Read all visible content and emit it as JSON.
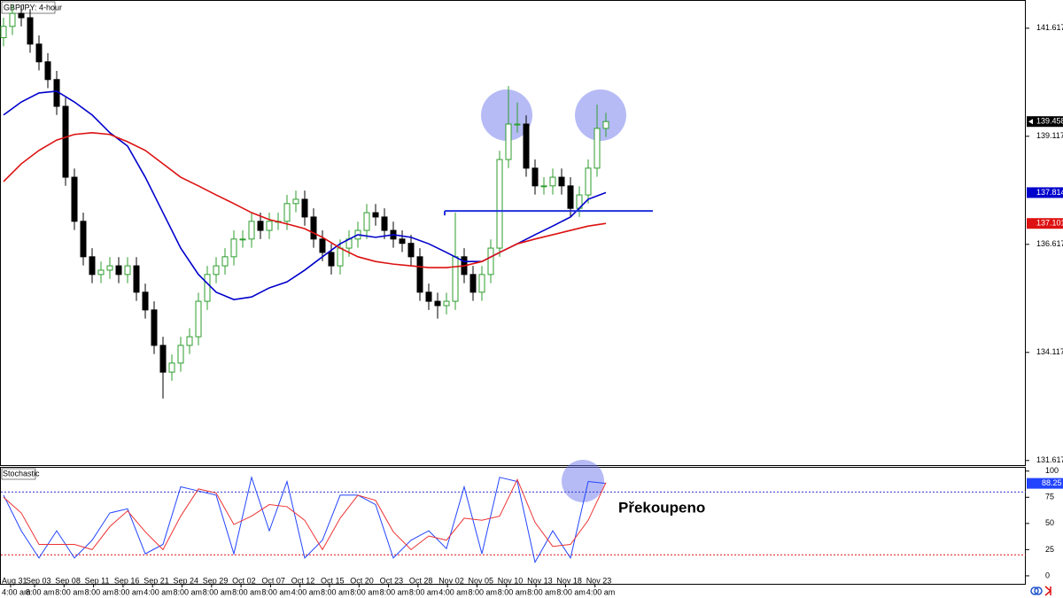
{
  "chart_data": {
    "type": "candlestick",
    "title": "GBPJPY: 4-hour",
    "ylim": [
      131.51,
      142.27
    ],
    "yticks": [
      141.617,
      139.117,
      136.617,
      134.117,
      131.617
    ],
    "up_color": "#2e9e2e",
    "down_color": "#000000",
    "open": [
      141.4,
      141.66,
      141.96,
      141.86,
      141.25,
      140.84,
      140.43,
      139.81,
      138.17,
      137.15,
      136.33,
      135.92,
      136.02,
      136.12,
      135.92,
      136.12,
      135.51,
      135.1,
      134.28,
      133.66,
      133.87,
      134.28,
      134.48,
      135.3,
      135.92,
      136.12,
      136.33,
      136.74,
      136.74,
      137.15,
      136.94,
      137.15,
      137.15,
      137.56,
      137.66,
      137.25,
      136.74,
      136.43,
      136.12,
      136.53,
      136.74,
      136.94,
      137.35,
      137.25,
      136.94,
      136.74,
      136.64,
      136.33,
      135.51,
      135.3,
      135.2,
      135.3,
      136.33,
      135.92,
      135.51,
      135.92,
      136.53,
      138.58,
      139.4,
      139.4,
      138.38,
      137.97,
      137.97,
      138.17,
      137.97,
      137.45,
      137.76,
      138.38,
      139.3
    ],
    "high": [
      141.86,
      142.16,
      142.16,
      142.06,
      141.45,
      141.04,
      140.63,
      140.01,
      138.37,
      137.35,
      136.53,
      136.22,
      136.32,
      136.32,
      136.32,
      136.32,
      135.71,
      135.3,
      134.48,
      134.07,
      134.48,
      134.68,
      135.5,
      136.12,
      136.32,
      136.53,
      136.94,
      136.94,
      137.35,
      137.35,
      137.35,
      137.35,
      137.76,
      137.86,
      137.86,
      137.45,
      136.94,
      136.63,
      136.73,
      136.94,
      137.14,
      137.55,
      137.55,
      137.45,
      137.14,
      136.94,
      136.84,
      136.53,
      135.71,
      135.5,
      135.5,
      137.35,
      136.53,
      136.12,
      136.12,
      136.73,
      138.78,
      140.28,
      139.9,
      139.6,
      138.58,
      138.17,
      138.37,
      138.37,
      138.17,
      137.96,
      138.58,
      139.85,
      139.66
    ],
    "low": [
      141.2,
      141.46,
      141.66,
      141.05,
      140.64,
      140.23,
      139.61,
      137.97,
      136.95,
      136.13,
      135.72,
      135.72,
      135.82,
      135.72,
      135.72,
      135.31,
      134.9,
      134.08,
      133.05,
      133.46,
      133.67,
      134.08,
      134.28,
      135.1,
      135.72,
      135.92,
      136.13,
      136.54,
      136.54,
      136.74,
      136.74,
      136.95,
      136.95,
      137.36,
      137.05,
      136.54,
      136.23,
      135.92,
      135.92,
      136.33,
      136.54,
      136.74,
      137.05,
      136.74,
      136.54,
      136.44,
      136.13,
      135.31,
      135.1,
      134.9,
      135.0,
      135.1,
      135.72,
      135.31,
      135.31,
      135.72,
      136.33,
      138.38,
      139.2,
      138.18,
      137.77,
      137.77,
      137.77,
      137.77,
      137.25,
      137.25,
      137.56,
      138.18,
      139.1
    ],
    "close": [
      141.66,
      141.96,
      141.86,
      141.25,
      140.84,
      140.43,
      139.81,
      138.17,
      137.15,
      136.33,
      135.92,
      136.02,
      136.12,
      135.92,
      136.12,
      135.51,
      135.1,
      134.28,
      133.66,
      133.87,
      134.28,
      134.48,
      135.3,
      135.92,
      136.12,
      136.33,
      136.74,
      136.74,
      137.15,
      136.94,
      137.15,
      137.15,
      137.56,
      137.66,
      137.25,
      136.74,
      136.43,
      136.12,
      136.53,
      136.74,
      136.94,
      137.35,
      137.25,
      136.94,
      136.74,
      136.64,
      136.33,
      135.51,
      135.3,
      135.2,
      135.3,
      136.33,
      135.92,
      135.51,
      135.92,
      136.53,
      138.58,
      139.4,
      139.4,
      138.38,
      137.97,
      137.97,
      138.17,
      137.97,
      137.45,
      137.76,
      138.38,
      139.3,
      139.458
    ],
    "current_label": "139.458",
    "moving_averages": [
      {
        "color": "#0000cc",
        "label": "137.814",
        "values": [
          139.61,
          139.91,
          140.12,
          140.16,
          139.91,
          139.61,
          139.2,
          138.89,
          138.17,
          137.35,
          136.53,
          135.92,
          135.51,
          135.34,
          135.4,
          135.61,
          135.75,
          136.02,
          136.33,
          136.63,
          136.84,
          136.78,
          136.84,
          136.78,
          136.63,
          136.43,
          136.22,
          136.22,
          136.43,
          136.63,
          136.84,
          137.04,
          137.25,
          137.66,
          137.814
        ]
      },
      {
        "color": "#dd1111",
        "label": "137.101",
        "values": [
          138.07,
          138.48,
          138.79,
          139.03,
          139.16,
          139.2,
          139.16,
          138.99,
          138.79,
          138.48,
          138.17,
          137.97,
          137.76,
          137.56,
          137.35,
          137.19,
          137.09,
          136.98,
          136.78,
          136.53,
          136.33,
          136.22,
          136.16,
          136.12,
          136.08,
          136.08,
          136.12,
          136.22,
          136.43,
          136.63,
          136.74,
          136.84,
          136.94,
          137.04,
          137.101
        ]
      }
    ],
    "support_level": 137.39,
    "support_color": "#2233dd",
    "indicator": {
      "title": "Stochastic",
      "annotation": "Překoupeno",
      "ylim": [
        -8.5,
        104
      ],
      "yticks": [
        100,
        75,
        50,
        25,
        0
      ],
      "levels": [
        {
          "value": 80,
          "color": "#3333cc"
        },
        {
          "value": 20,
          "color": "#dd1111"
        }
      ],
      "series": [
        {
          "name": "%K",
          "color": "#2244ff",
          "label": "88.25",
          "values": [
            77,
            43,
            17,
            43,
            17,
            34,
            60,
            64,
            21,
            30,
            85,
            81,
            77,
            21,
            94,
            43,
            90,
            17,
            34,
            77,
            77,
            68,
            17,
            34,
            43,
            26,
            85,
            21,
            94,
            90,
            13,
            43,
            17,
            90,
            88.25
          ]
        },
        {
          "name": "%D",
          "color": "#ee3333",
          "values": [
            75,
            60,
            30,
            30,
            30,
            25,
            47,
            62,
            42,
            25,
            57,
            83,
            79,
            49,
            57,
            68,
            66,
            53,
            25,
            55,
            77,
            72,
            42,
            25,
            38,
            34,
            55,
            53,
            57,
            92,
            51,
            28,
            30,
            53,
            89
          ]
        }
      ]
    },
    "x_labels": [
      {
        "date": "Aug 31",
        "time": "4:00 am"
      },
      {
        "date": "Sep 03",
        "time": "8:00 am"
      },
      {
        "date": "Sep 08",
        "time": "8:00 am"
      },
      {
        "date": "Sep 11",
        "time": "8:00 am"
      },
      {
        "date": "Sep 16",
        "time": "8:00 am"
      },
      {
        "date": "Sep 21",
        "time": "4:00 am"
      },
      {
        "date": "Sep 24",
        "time": "8:00 am"
      },
      {
        "date": "Sep 29",
        "time": "8:00 am"
      },
      {
        "date": "Oct 02",
        "time": "8:00 am"
      },
      {
        "date": "Oct 07",
        "time": "8:00 am"
      },
      {
        "date": "Oct 12",
        "time": "4:00 am"
      },
      {
        "date": "Oct 15",
        "time": "8:00 am"
      },
      {
        "date": "Oct 20",
        "time": "8:00 am"
      },
      {
        "date": "Oct 23",
        "time": "8:00 am"
      },
      {
        "date": "Oct 28",
        "time": "8:00 am"
      },
      {
        "date": "Nov 02",
        "time": "4:00 am"
      },
      {
        "date": "Nov 05",
        "time": "8:00 am"
      },
      {
        "date": "Nov 10",
        "time": "8:00 am"
      },
      {
        "date": "Nov 13",
        "time": "8:00 am"
      },
      {
        "date": "Nov 18",
        "time": "8:00 am"
      },
      {
        "date": "Nov 23",
        "time": "4:00 am"
      }
    ]
  }
}
